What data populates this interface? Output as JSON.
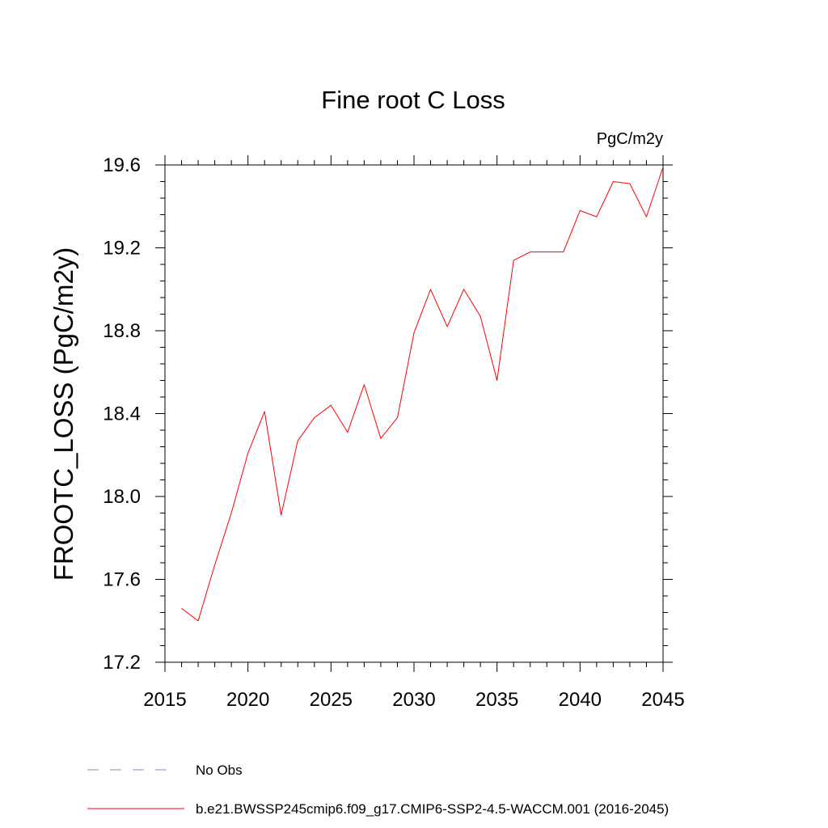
{
  "chart_data": {
    "type": "line",
    "title": "Fine root C Loss",
    "units_label": "PgC/m2y",
    "ylabel": "FROOTC_LOSS  (PgC/m2y)",
    "xlabel": "",
    "xlim": [
      2015,
      2045
    ],
    "ylim": [
      17.2,
      19.6
    ],
    "x_ticks": [
      "2015",
      "2020",
      "2025",
      "2030",
      "2035",
      "2040",
      "2045"
    ],
    "y_ticks": [
      "17.2",
      "17.6",
      "18.0",
      "18.4",
      "18.8",
      "19.2",
      "19.6"
    ],
    "grid": false,
    "series": [
      {
        "name": "b.e21.BWSSP245cmip6.f09_g17.CMIP6-SSP2-4.5-WACCM.001 (2016-2045)",
        "color": "#ff0000",
        "style": "solid",
        "x": [
          2016,
          2017,
          2018,
          2019,
          2020,
          2021,
          2022,
          2023,
          2024,
          2025,
          2026,
          2027,
          2028,
          2029,
          2030,
          2031,
          2032,
          2033,
          2034,
          2035,
          2036,
          2037,
          2038,
          2039,
          2040,
          2041,
          2042,
          2043,
          2044,
          2045
        ],
        "y": [
          17.46,
          17.4,
          17.67,
          17.92,
          18.21,
          18.41,
          17.91,
          18.27,
          18.38,
          18.44,
          18.31,
          18.54,
          18.28,
          18.38,
          18.79,
          19.0,
          18.82,
          19.0,
          18.87,
          18.56,
          19.14,
          19.18,
          19.18,
          19.18,
          19.38,
          19.35,
          19.52,
          19.51,
          19.35,
          19.59
        ]
      }
    ],
    "legend": {
      "placement": "bottom",
      "entries": [
        {
          "label": "No Obs",
          "color": "#8f85c0",
          "style": "dashed"
        },
        {
          "label": "b.e21.BWSSP245cmip6.f09_g17.CMIP6-SSP2-4.5-WACCM.001 (2016-2045)",
          "color": "#ff0000",
          "style": "solid"
        }
      ]
    }
  }
}
